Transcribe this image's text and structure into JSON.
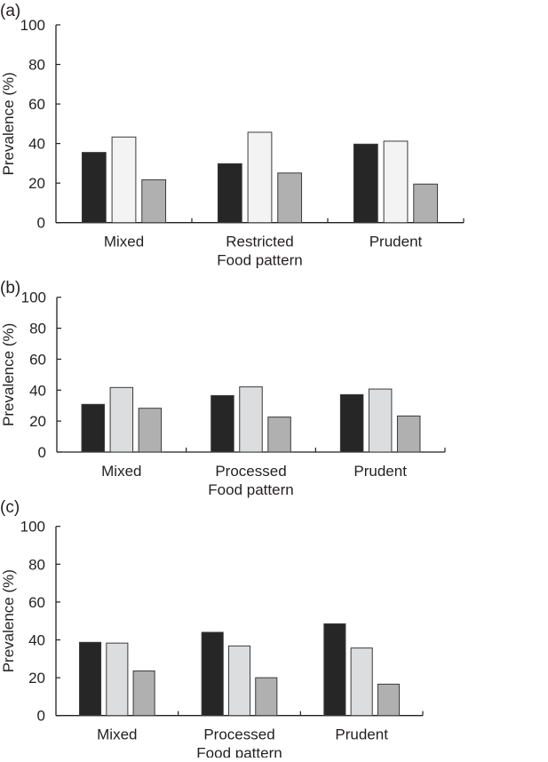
{
  "colors": {
    "series1": "#262626",
    "series2_a": "#f2f3f2",
    "series2_bc": "#dcdddf",
    "series3": "#b0b0b0",
    "axis": "#231f20"
  },
  "chart_data": [
    {
      "type": "bar",
      "panel_label": "(a)",
      "xlabel": "Food pattern",
      "ylabel": "Prevalence (%)",
      "ylim": [
        0,
        100
      ],
      "yticks": [
        "0",
        "20",
        "40",
        "60",
        "80",
        "100"
      ],
      "grid": false,
      "categories": [
        "Mixed",
        "Restricted",
        "Prudent"
      ],
      "series": [
        {
          "values": [
            35.5,
            29.8,
            39.7
          ]
        },
        {
          "values": [
            43.3,
            45.7,
            41.2
          ]
        },
        {
          "values": [
            21.7,
            25.1,
            19.5
          ]
        }
      ]
    },
    {
      "type": "bar",
      "panel_label": "(b)",
      "xlabel": "Food pattern",
      "ylabel": "Prevalence (%)",
      "ylim": [
        0,
        100
      ],
      "yticks": [
        "0",
        "20",
        "40",
        "60",
        "80",
        "100"
      ],
      "grid": false,
      "categories": [
        "Mixed",
        "Processed",
        "Prudent"
      ],
      "series": [
        {
          "values": [
            30.8,
            36.5,
            37.1
          ]
        },
        {
          "values": [
            41.7,
            42.1,
            40.7
          ]
        },
        {
          "values": [
            28.3,
            22.6,
            23.3
          ]
        }
      ]
    },
    {
      "type": "bar",
      "panel_label": "(c)",
      "xlabel": "Food pattern",
      "ylabel": "Prevalence (%)",
      "ylim": [
        0,
        100
      ],
      "yticks": [
        "0",
        "20",
        "40",
        "60",
        "80",
        "100"
      ],
      "grid": false,
      "categories": [
        "Mixed",
        "Processed",
        "Prudent"
      ],
      "series": [
        {
          "values": [
            38.7,
            44.0,
            48.5
          ]
        },
        {
          "values": [
            38.3,
            36.8,
            35.7
          ]
        },
        {
          "values": [
            23.6,
            20.0,
            16.6
          ]
        }
      ]
    }
  ]
}
